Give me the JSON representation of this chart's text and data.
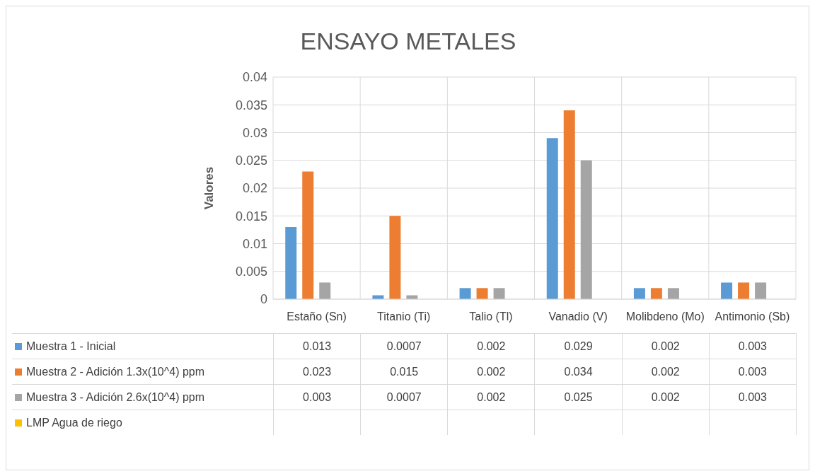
{
  "chart_data": {
    "type": "bar",
    "title": "ENSAYO METALES",
    "ylabel": "Valores",
    "categories": [
      "Estaño (Sn)",
      "Titanio (Ti)",
      "Talio (Tl)",
      "Vanadio (V)",
      "Molibdeno (Mo)",
      "Antimonio (Sb)"
    ],
    "series": [
      {
        "name": "Muestra 1 - Inicial",
        "color": "#5b9bd5",
        "values": [
          0.013,
          0.0007,
          0.002,
          0.029,
          0.002,
          0.003
        ]
      },
      {
        "name": "Muestra 2 - Adición 1.3x(10^4) ppm",
        "color": "#ed7d31",
        "values": [
          0.023,
          0.015,
          0.002,
          0.034,
          0.002,
          0.003
        ]
      },
      {
        "name": "Muestra 3 - Adición 2.6x(10^4) ppm",
        "color": "#a5a5a5",
        "values": [
          0.003,
          0.0007,
          0.002,
          0.025,
          0.002,
          0.003
        ]
      },
      {
        "name": "LMP Agua de riego",
        "color": "#ffc000",
        "values": [
          null,
          null,
          null,
          null,
          null,
          null
        ]
      }
    ],
    "ylim": [
      0,
      0.04
    ],
    "yticks": [
      0,
      0.005,
      0.01,
      0.015,
      0.02,
      0.025,
      0.03,
      0.035,
      0.04
    ],
    "grid": true,
    "legend": "bottom",
    "data_labels": true
  }
}
